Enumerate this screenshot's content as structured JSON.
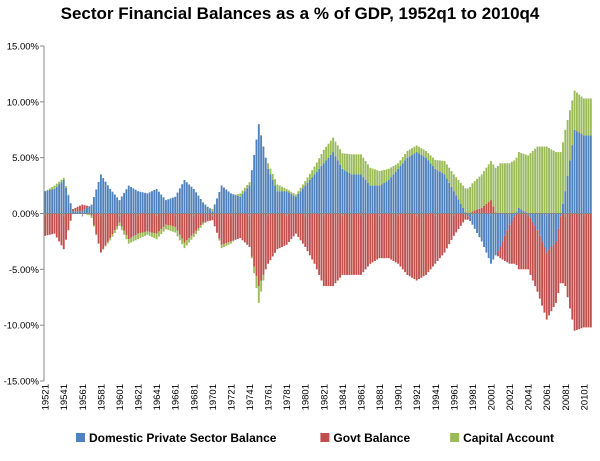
{
  "chart_data": {
    "type": "bar",
    "stacked": true,
    "title": "Sector Financial Balances as a % of GDP, 1952q1 to 2010q4",
    "xlabel": "",
    "ylabel": "",
    "ylim": [
      -15,
      15
    ],
    "yticks": [
      "15.00%",
      "10.00%",
      "5.00%",
      "0.00%",
      "-5.00%",
      "-10.00%",
      "-15.00%"
    ],
    "ytick_values": [
      15,
      10,
      5,
      0,
      -5,
      -10,
      -15
    ],
    "xticks": [
      "1952q1",
      "1954q1",
      "1956q1",
      "1958q1",
      "1960q1",
      "1962q1",
      "1964q1",
      "1966q1",
      "1968q1",
      "1970q1",
      "1972q1",
      "1974q1",
      "1976q1",
      "1978q1",
      "1980q1",
      "1982q1",
      "1984q1",
      "1986q1",
      "1988q1",
      "1990q1",
      "1992q1",
      "1994q1",
      "1996q1",
      "1998q1",
      "2000q1",
      "2002q1",
      "2004q1",
      "2006q1",
      "2008q1",
      "2010q1"
    ],
    "xtick_labels": [
      "19521",
      "19541",
      "19561",
      "19581",
      "19601",
      "19621",
      "19641",
      "19661",
      "19681",
      "19701",
      "19721",
      "19741",
      "19761",
      "19781",
      "19801",
      "19821",
      "19841",
      "19861",
      "19881",
      "19901",
      "19921",
      "19941",
      "19961",
      "19981",
      "20001",
      "20021",
      "20041",
      "20061",
      "20081",
      "20101"
    ],
    "grid": false,
    "legend": "bottom",
    "annual_sample": [
      1952,
      1953,
      1954,
      1955,
      1956,
      1957,
      1958,
      1959,
      1960,
      1961,
      1962,
      1963,
      1964,
      1965,
      1966,
      1967,
      1968,
      1969,
      1970,
      1971,
      1972,
      1973,
      1974,
      1975,
      1976,
      1977,
      1978,
      1979,
      1980,
      1981,
      1982,
      1983,
      1984,
      1985,
      1986,
      1987,
      1988,
      1989,
      1990,
      1991,
      1992,
      1993,
      1994,
      1995,
      1996,
      1997,
      1998,
      1999,
      2000,
      2001,
      2002,
      2003,
      2004,
      2005,
      2006,
      2007,
      2008,
      2009,
      2010
    ],
    "series": [
      {
        "name": "Domestic Private Sector Balance",
        "color": "#4F81BD",
        "values": [
          2.0,
          2.2,
          3.0,
          0.2,
          0.2,
          0.8,
          3.5,
          2.2,
          1.2,
          2.5,
          2.0,
          1.8,
          2.2,
          1.2,
          1.5,
          3.0,
          2.2,
          1.0,
          0.2,
          2.5,
          1.8,
          1.5,
          2.5,
          8.0,
          4.0,
          2.0,
          2.0,
          1.5,
          2.5,
          3.5,
          4.5,
          5.5,
          4.0,
          3.5,
          3.5,
          2.5,
          2.5,
          3.0,
          4.0,
          5.0,
          5.5,
          5.0,
          4.0,
          3.5,
          2.0,
          0.5,
          -1.0,
          -2.5,
          -4.5,
          -3.0,
          -1.0,
          0.5,
          0.0,
          -1.5,
          -3.5,
          -2.5,
          2.0,
          7.5,
          7.0
        ]
      },
      {
        "name": "Govt Balance",
        "color": "#C0504D",
        "values": [
          -2.0,
          -1.8,
          -3.2,
          0.2,
          0.6,
          -0.2,
          -3.5,
          -2.2,
          -0.8,
          -2.3,
          -1.8,
          -1.6,
          -1.8,
          -1.0,
          -1.2,
          -2.6,
          -1.8,
          -0.8,
          -0.6,
          -2.8,
          -2.5,
          -2.2,
          -3.0,
          -6.5,
          -4.5,
          -3.2,
          -2.8,
          -1.8,
          -3.0,
          -4.5,
          -6.5,
          -6.5,
          -5.5,
          -5.5,
          -5.5,
          -4.5,
          -4.0,
          -4.0,
          -4.5,
          -5.5,
          -6.0,
          -5.5,
          -4.5,
          -3.5,
          -2.0,
          -0.8,
          0.2,
          0.5,
          1.2,
          -1.0,
          -3.5,
          -5.0,
          -5.0,
          -5.5,
          -6.0,
          -5.5,
          -6.5,
          -10.5,
          -10.2
        ]
      },
      {
        "name": "Capital Account",
        "color": "#9BBB59",
        "values": [
          0.0,
          0.3,
          0.2,
          0.0,
          0.0,
          -0.2,
          0.0,
          -0.2,
          -0.3,
          -0.4,
          -0.5,
          -0.3,
          -0.5,
          -0.4,
          -0.5,
          -0.5,
          -0.3,
          -0.2,
          0.2,
          -0.3,
          -0.2,
          0.3,
          0.3,
          -1.5,
          0.5,
          0.6,
          0.2,
          0.2,
          0.4,
          0.7,
          1.2,
          1.3,
          1.4,
          1.8,
          1.8,
          1.6,
          1.3,
          1.0,
          0.5,
          0.6,
          0.6,
          0.6,
          0.8,
          1.2,
          1.5,
          2.0,
          2.5,
          3.0,
          3.5,
          4.5,
          4.5,
          5.0,
          5.2,
          6.0,
          6.0,
          5.5,
          5.5,
          3.5,
          3.3
        ]
      }
    ]
  }
}
